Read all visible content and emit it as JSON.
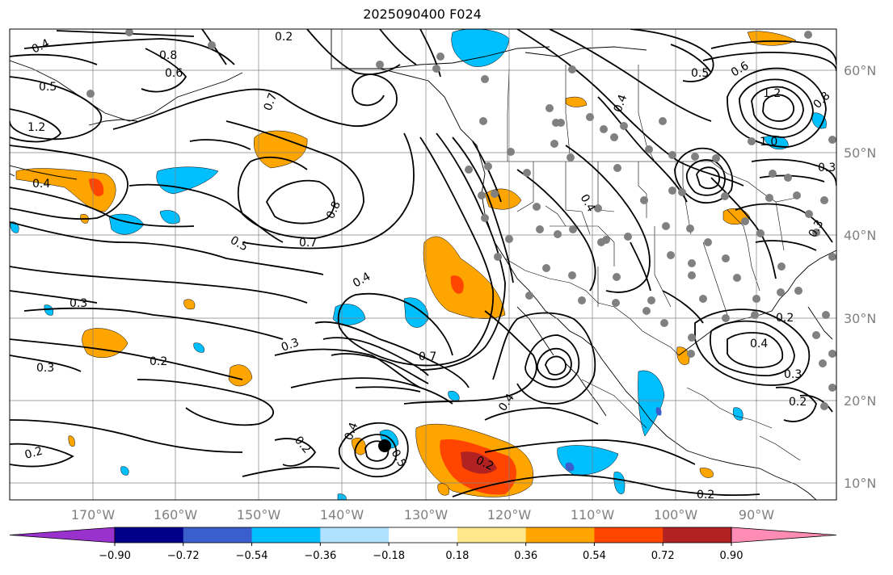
{
  "title": "2025090400 F024",
  "map": {
    "lon_labels": [
      "170°W",
      "160°W",
      "150°W",
      "140°W",
      "130°W",
      "120°W",
      "110°W",
      "100°W",
      "90°W"
    ],
    "lat_labels": [
      "60°N",
      "50°N",
      "40°N",
      "30°N",
      "20°N",
      "10°N"
    ],
    "contour_labels": [
      "0.4",
      "0.2",
      "0.8",
      "0.6",
      "0.5",
      "1.2",
      "0.7",
      "0.8",
      "0.4",
      "0.3",
      "0.7",
      "0.5",
      "0.4",
      "0.3",
      "0.2",
      "0.3",
      "0.7",
      "0.5",
      "0.2",
      "0.4",
      "0.2",
      "0.4",
      "0.2",
      "0.5",
      "0.6",
      "0.4",
      "0.8",
      "1.2",
      "1.0",
      "0.3",
      "0.4",
      "0.2",
      "0.3",
      "0.4",
      "0.2",
      "0.2",
      "0.3"
    ],
    "colors": {
      "contour": "#000000",
      "grid": "#808080",
      "dots": "#808080",
      "storm_center": "#000000"
    }
  },
  "colorbar": {
    "ticks": [
      "−0.90",
      "−0.72",
      "−0.54",
      "−0.36",
      "−0.18",
      "0.18",
      "0.36",
      "0.54",
      "0.72",
      "0.90"
    ],
    "colors": [
      "#9932cc",
      "#00008b",
      "#3a5fcd",
      "#00bfff",
      "#b0e2ff",
      "#ffffff",
      "#ffe88c",
      "#ffa500",
      "#ff4500",
      "#b22222",
      "#ff8cb4"
    ]
  }
}
